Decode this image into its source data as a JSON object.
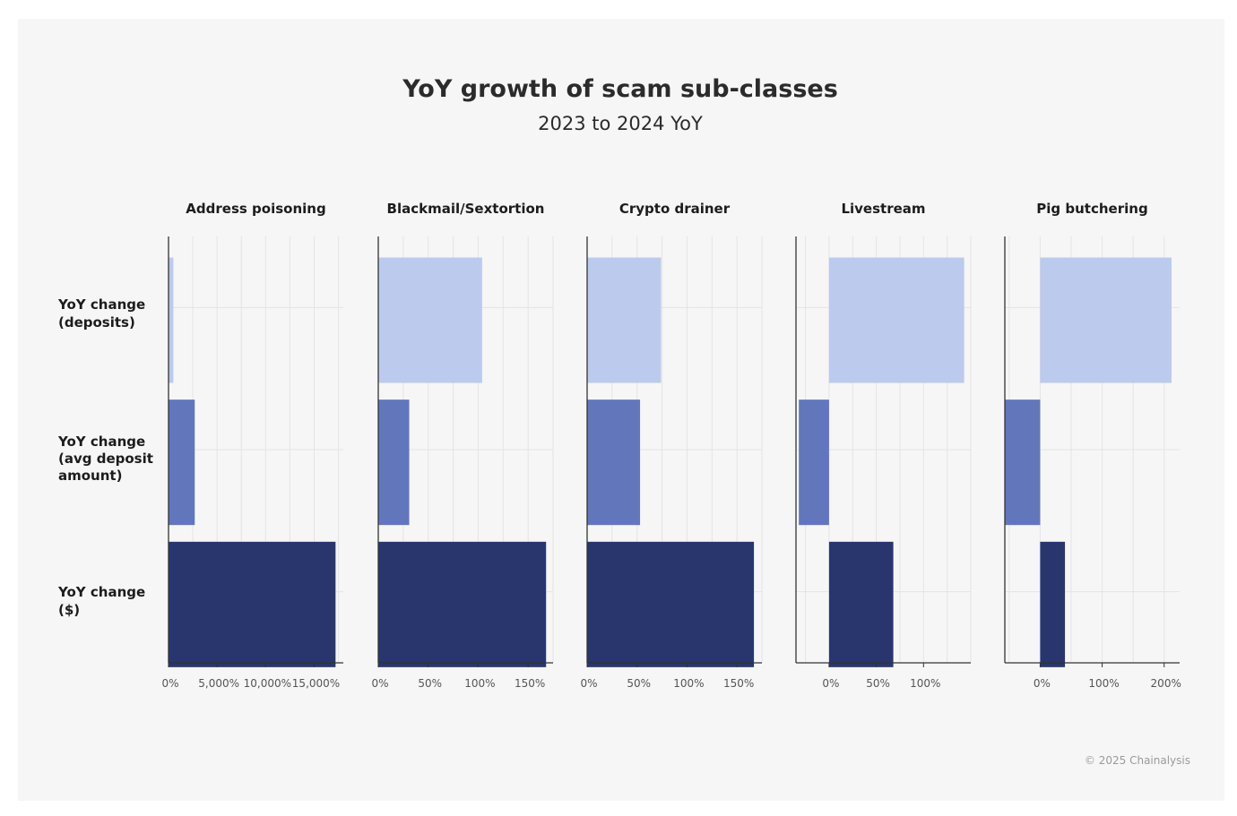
{
  "title": "YoY growth of scam sub-classes",
  "subtitle": "2023 to 2024 YoY",
  "copyright": "© 2025 Chainalysis",
  "colors": {
    "deposits": "#bccaed",
    "avg_deposit_amount": "#6277bb",
    "dollars": "#29366e",
    "axis": "#333333",
    "grid": "#e4e4e4"
  },
  "chart_data": {
    "type": "bar",
    "orientation": "horizontal",
    "facets": "small-multiples",
    "row_labels": [
      [
        "YoY change",
        "(deposits)"
      ],
      [
        "YoY change",
        "(avg deposit",
        "amount)"
      ],
      [
        "YoY change",
        "($)"
      ]
    ],
    "panels": [
      {
        "title": "Address poisoning",
        "xlim": [
          0,
          18000
        ],
        "ticks": [
          0,
          5000,
          10000,
          15000
        ],
        "tick_labels": [
          "0%",
          "5,000%",
          "10,000%",
          "15,000%"
        ],
        "grid_step": 2500,
        "values": [
          500,
          2700,
          17200
        ]
      },
      {
        "title": "Blackmail/Sextortion",
        "xlim": [
          0,
          175
        ],
        "ticks": [
          0,
          50,
          100,
          150
        ],
        "tick_labels": [
          "0%",
          "50%",
          "100%",
          "150%"
        ],
        "grid_step": 25,
        "values": [
          104,
          31,
          168
        ]
      },
      {
        "title": "Crypto drainer",
        "xlim": [
          0,
          175
        ],
        "ticks": [
          0,
          50,
          100,
          150
        ],
        "tick_labels": [
          "0%",
          "50%",
          "100%",
          "150%"
        ],
        "grid_step": 25,
        "values": [
          74,
          53,
          167
        ]
      },
      {
        "title": "Livestream",
        "xlim": [
          -35,
          150
        ],
        "ticks": [
          0,
          50,
          100
        ],
        "tick_labels": [
          "0%",
          "50%",
          "100%"
        ],
        "grid_step": 25,
        "values": [
          143,
          -32,
          68
        ]
      },
      {
        "title": "Pig butchering",
        "xlim": [
          -57,
          225
        ],
        "ticks": [
          0,
          100,
          200
        ],
        "tick_labels": [
          "0%",
          "100%",
          "200%"
        ],
        "grid_step": 50,
        "values": [
          212,
          -57,
          40
        ]
      }
    ]
  }
}
